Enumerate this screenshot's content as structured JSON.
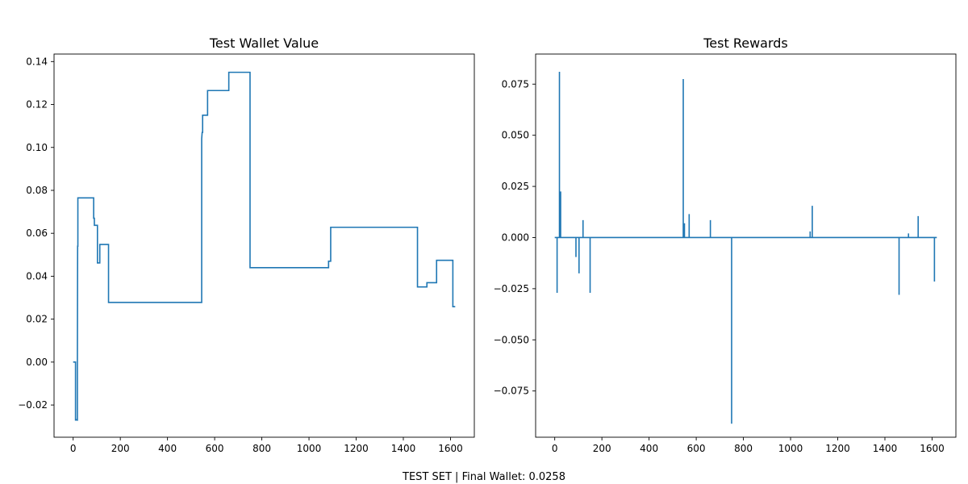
{
  "caption": "TEST SET | Final Wallet: 0.0258",
  "colors": {
    "line": "#1f77b4",
    "axis": "#000000"
  },
  "chart_data": [
    {
      "type": "line",
      "title": "Test Wallet Value",
      "xlabel": "",
      "ylabel": "",
      "xlim": [
        -81,
        1701
      ],
      "ylim": [
        -0.035,
        0.1435
      ],
      "xticks": [
        0,
        200,
        400,
        600,
        800,
        1000,
        1200,
        1400,
        1600
      ],
      "yticks": [
        -0.02,
        0.0,
        0.02,
        0.04,
        0.06,
        0.08,
        0.1,
        0.12,
        0.14
      ],
      "ytick_labels": [
        "−0.02",
        "0.00",
        "0.02",
        "0.04",
        "0.06",
        "0.08",
        "0.10",
        "0.12",
        "0.14"
      ],
      "grid": false,
      "series": [
        {
          "x": [
            0,
            10,
            10,
            13,
            13,
            18,
            18,
            19,
            20,
            20,
            25,
            25,
            87,
            87,
            90,
            90,
            103,
            103,
            113,
            113,
            150,
            150,
            545,
            545,
            547,
            549,
            549,
            570,
            570,
            660,
            660,
            750,
            750,
            1083,
            1083,
            1092,
            1092,
            1460,
            1460,
            1500,
            1500,
            1541,
            1541,
            1610,
            1610,
            1620
          ],
          "y": [
            0.0,
            0.0,
            -0.027,
            -0.027,
            -0.0268,
            -0.027,
            0.0,
            0.054,
            0.054,
            0.0765,
            0.0765,
            0.0765,
            0.0765,
            0.067,
            0.067,
            0.0637,
            0.0637,
            0.0462,
            0.0462,
            0.0548,
            0.0548,
            0.0278,
            0.0278,
            0.104,
            0.107,
            0.107,
            0.115,
            0.115,
            0.1265,
            0.1265,
            0.135,
            0.135,
            0.044,
            0.044,
            0.047,
            0.047,
            0.0628,
            0.0628,
            0.035,
            0.035,
            0.037,
            0.037,
            0.0474,
            0.0474,
            0.0258,
            0.0258
          ]
        }
      ]
    },
    {
      "type": "line",
      "title": "Test Rewards",
      "xlabel": "",
      "ylabel": "",
      "xlim": [
        -81,
        1701
      ],
      "ylim": [
        -0.0976,
        0.0897
      ],
      "xticks": [
        0,
        200,
        400,
        600,
        800,
        1000,
        1200,
        1400,
        1600
      ],
      "yticks": [
        -0.075,
        -0.05,
        -0.025,
        0.0,
        0.025,
        0.05,
        0.075
      ],
      "ytick_labels": [
        "−0.075",
        "−0.050",
        "−0.025",
        "0.000",
        "0.025",
        "0.050",
        "0.075"
      ],
      "grid": false,
      "series": [
        {
          "x": [
            0,
            10,
            10,
            10,
            20,
            20,
            20,
            25,
            25,
            25,
            90,
            90,
            90,
            103,
            103,
            103,
            120,
            120,
            120,
            150,
            150,
            150,
            545,
            545,
            545,
            550,
            550,
            550,
            570,
            570,
            570,
            660,
            660,
            660,
            750,
            750,
            750,
            1083,
            1083,
            1083,
            1092,
            1092,
            1092,
            1460,
            1460,
            1460,
            1500,
            1500,
            1500,
            1541,
            1541,
            1541,
            1610,
            1610,
            1610,
            1620
          ],
          "y": [
            0,
            0,
            -0.027,
            0,
            0,
            0.081,
            0,
            0,
            0.0225,
            0,
            0,
            -0.0095,
            0,
            0,
            -0.0175,
            0,
            0,
            0.0085,
            0,
            0,
            -0.027,
            0,
            0,
            0.0775,
            0,
            0,
            0.007,
            0,
            0,
            0.0115,
            0,
            0,
            0.0085,
            0,
            0,
            -0.091,
            0,
            0,
            0.003,
            0,
            0,
            0.0155,
            0,
            0,
            -0.028,
            0,
            0,
            0.002,
            0,
            0,
            0.0105,
            0,
            0,
            -0.0215,
            0,
            0
          ]
        }
      ]
    }
  ]
}
